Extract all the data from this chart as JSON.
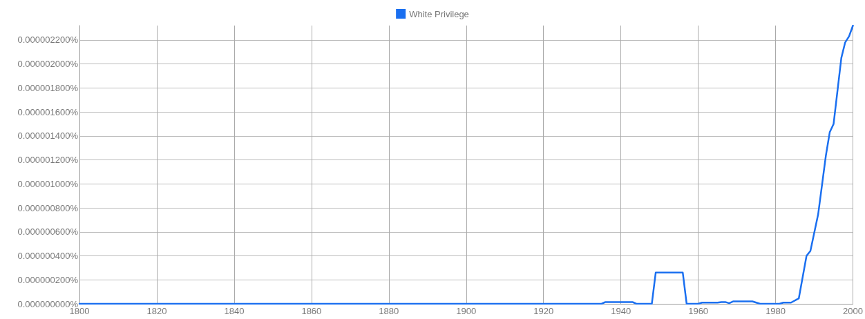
{
  "chart_data": {
    "type": "line",
    "x": [
      1800,
      1935,
      1936,
      1943,
      1944,
      1948,
      1949,
      1956,
      1957,
      1960,
      1961,
      1965,
      1966,
      1967,
      1968,
      1969,
      1974,
      1975,
      1976,
      1981,
      1982,
      1984,
      1986,
      1988,
      1989,
      1991,
      1993,
      1994,
      1995,
      1997,
      1998,
      1999,
      2000
    ],
    "series": [
      {
        "name": "White Privilege",
        "color": "#1a6ff0",
        "values": [
          0,
          0,
          1.5e-08,
          1.5e-08,
          0,
          0,
          2.6e-07,
          2.6e-07,
          0,
          0,
          1e-08,
          1e-08,
          1.5e-08,
          1.5e-08,
          5e-09,
          2e-08,
          2e-08,
          1e-08,
          0,
          0,
          1e-08,
          1e-08,
          4.5e-08,
          4e-07,
          4.4e-07,
          7.45e-07,
          1.235e-06,
          1.43e-06,
          1.5e-06,
          2.05e-06,
          2.18e-06,
          2.23e-06,
          2.32e-06
        ]
      }
    ],
    "xlim": [
      1800,
      2000
    ],
    "xticks": [
      1800,
      1820,
      1840,
      1860,
      1880,
      1900,
      1920,
      1940,
      1960,
      1980,
      2000
    ],
    "ylim": [
      0,
      2.32e-06
    ],
    "yticks": [
      {
        "value": 0,
        "label": "0.000000000%"
      },
      {
        "value": 2e-07,
        "label": "0.000000200%"
      },
      {
        "value": 4e-07,
        "label": "0.000000400%"
      },
      {
        "value": 6e-07,
        "label": "0.000000600%"
      },
      {
        "value": 8e-07,
        "label": "0.000000800%"
      },
      {
        "value": 1e-06,
        "label": "0.000001000%"
      },
      {
        "value": 1.2e-06,
        "label": "0.000001200%"
      },
      {
        "value": 1.4e-06,
        "label": "0.000001400%"
      },
      {
        "value": 1.6e-06,
        "label": "0.000001600%"
      },
      {
        "value": 1.8e-06,
        "label": "0.000001800%"
      },
      {
        "value": 2e-06,
        "label": "0.000002000%"
      },
      {
        "value": 2.2e-06,
        "label": "0.000002200%"
      }
    ],
    "grid": true,
    "legend": "top",
    "marker": "none",
    "line_style": "solid"
  }
}
